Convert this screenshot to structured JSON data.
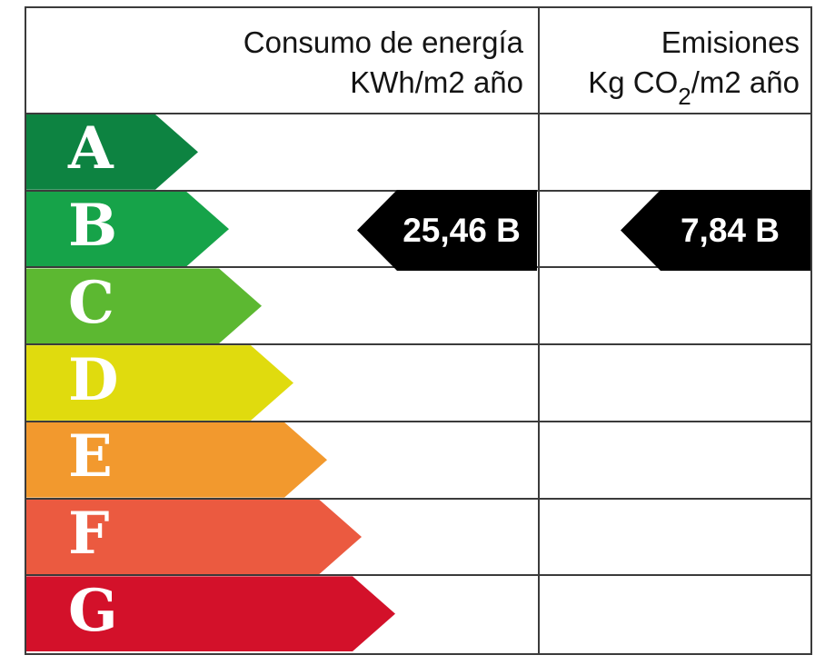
{
  "header": {
    "consumo": {
      "line1": "Consumo de energía",
      "line2": "KWh/m2 año"
    },
    "emisiones": {
      "line1": "Emisiones",
      "line2_pre": "Kg CO",
      "line2_sub": "2",
      "line2_post": "/m2 año"
    }
  },
  "ratings": [
    {
      "letter": "A",
      "color": "#0d8341"
    },
    {
      "letter": "B",
      "color": "#16a349"
    },
    {
      "letter": "C",
      "color": "#5cb831"
    },
    {
      "letter": "D",
      "color": "#e0db0e"
    },
    {
      "letter": "E",
      "color": "#f2992e"
    },
    {
      "letter": "F",
      "color": "#eb5a40"
    },
    {
      "letter": "G",
      "color": "#d3112a"
    }
  ],
  "indicators": {
    "consumo": {
      "label": "25,46 B"
    },
    "emisiones": {
      "label": "7,84 B"
    }
  },
  "colors": {
    "border": "#3b3b3b",
    "indicator_background": "#000000",
    "indicator_text": "#ffffff"
  },
  "chart_data": {
    "type": "bar",
    "categories": [
      "A",
      "B",
      "C",
      "D",
      "E",
      "F",
      "G"
    ],
    "series": [
      {
        "name": "Consumo de energía KWh/m2 año",
        "value": 25.46,
        "rating": "B"
      },
      {
        "name": "Emisiones Kg CO2/m2 año",
        "value": 7.84,
        "rating": "B"
      }
    ],
    "rating_colors": {
      "A": "#0d8341",
      "B": "#16a349",
      "C": "#5cb831",
      "D": "#e0db0e",
      "E": "#f2992e",
      "F": "#eb5a40",
      "G": "#d3112a"
    },
    "legend_position": "none",
    "grid": false
  }
}
